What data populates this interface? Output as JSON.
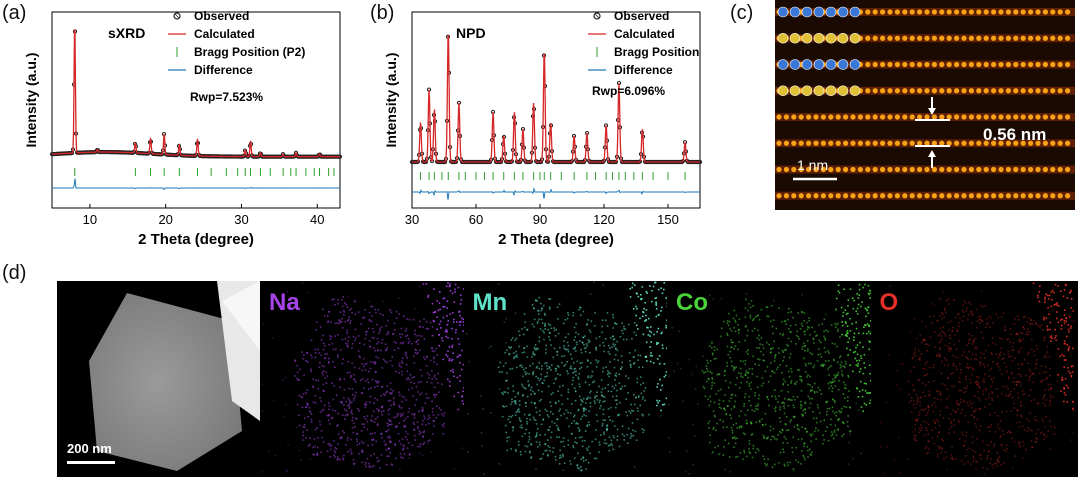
{
  "panels": {
    "a": {
      "label": "(a)"
    },
    "b": {
      "label": "(b)"
    },
    "c": {
      "label": "(c)"
    },
    "d": {
      "label": "(d)"
    }
  },
  "chart_data": [
    {
      "type": "line",
      "panel": "a",
      "inset_title": "sXRD",
      "xlabel": "2 Theta (degree)",
      "ylabel": "Intensity (a.u.)",
      "xlim": [
        5,
        43
      ],
      "xticks": [
        10,
        20,
        30,
        40
      ],
      "legend": [
        "Observed",
        "Calculated",
        "Bragg Position (P2)",
        "Difference"
      ],
      "legend_position": "top-right",
      "annotation": "Rwp=7.523%",
      "colors": {
        "observed": "#222222",
        "calculated": "#d62728",
        "bragg": "#2ca02c",
        "difference": "#1f77b4"
      },
      "peaks": [
        {
          "x": 8.0,
          "h": 1.0
        },
        {
          "x": 11.0,
          "h": 0.02
        },
        {
          "x": 16.0,
          "h": 0.08
        },
        {
          "x": 18.0,
          "h": 0.12
        },
        {
          "x": 19.8,
          "h": 0.16
        },
        {
          "x": 21.8,
          "h": 0.08
        },
        {
          "x": 24.2,
          "h": 0.13
        },
        {
          "x": 30.5,
          "h": 0.05
        },
        {
          "x": 31.2,
          "h": 0.12
        },
        {
          "x": 32.5,
          "h": 0.03
        },
        {
          "x": 35.5,
          "h": 0.02
        },
        {
          "x": 37.2,
          "h": 0.03
        },
        {
          "x": 40.3,
          "h": 0.02
        }
      ],
      "bragg": [
        8.0,
        16.0,
        18.0,
        19.8,
        21.8,
        24.2,
        26.0,
        28.0,
        29.5,
        30.5,
        31.2,
        32.5,
        33.8,
        35.5,
        36.5,
        37.2,
        38.5,
        39.6,
        40.3,
        41.5,
        42.2
      ]
    },
    {
      "type": "line",
      "panel": "b",
      "inset_title": "NPD",
      "xlabel": "2 Theta (degree)",
      "ylabel": "Intensity (a.u.)",
      "xlim": [
        30,
        165
      ],
      "xticks": [
        30,
        60,
        90,
        120,
        150
      ],
      "legend": [
        "Observed",
        "Calculated",
        "Bragg Position",
        "Difference"
      ],
      "legend_position": "top-right",
      "annotation": "Rwp=6.096%",
      "colors": {
        "observed": "#222222",
        "calculated": "#d62728",
        "bragg": "#2ca02c",
        "difference": "#1f77b4"
      },
      "peaks": [
        {
          "x": 34,
          "h": 0.3
        },
        {
          "x": 38,
          "h": 0.55
        },
        {
          "x": 40.5,
          "h": 0.4
        },
        {
          "x": 47,
          "h": 1.0
        },
        {
          "x": 52,
          "h": 0.45
        },
        {
          "x": 68,
          "h": 0.38
        },
        {
          "x": 73,
          "h": 0.2
        },
        {
          "x": 78,
          "h": 0.38
        },
        {
          "x": 82,
          "h": 0.25
        },
        {
          "x": 87,
          "h": 0.45
        },
        {
          "x": 92,
          "h": 0.85
        },
        {
          "x": 95,
          "h": 0.3
        },
        {
          "x": 106,
          "h": 0.2
        },
        {
          "x": 112,
          "h": 0.22
        },
        {
          "x": 121,
          "h": 0.28
        },
        {
          "x": 127,
          "h": 0.6
        },
        {
          "x": 138,
          "h": 0.25
        },
        {
          "x": 158,
          "h": 0.15
        }
      ],
      "bragg": [
        34,
        38,
        40.5,
        44,
        47,
        52,
        55,
        60,
        64,
        68,
        73,
        78,
        82,
        87,
        90,
        92,
        95,
        100,
        106,
        112,
        116,
        121,
        124,
        127,
        130,
        134,
        138,
        143,
        150,
        158
      ]
    }
  ],
  "stem": {
    "scale_label": "1 nm",
    "spacing_label": "0.56 nm"
  },
  "eds": {
    "scale_label": "200 nm",
    "maps": [
      {
        "element": "Na",
        "color": "#a744e8"
      },
      {
        "element": "Mn",
        "color": "#5fe3c8"
      },
      {
        "element": "Co",
        "color": "#49d43a"
      },
      {
        "element": "O",
        "color": "#e8302a"
      }
    ]
  }
}
